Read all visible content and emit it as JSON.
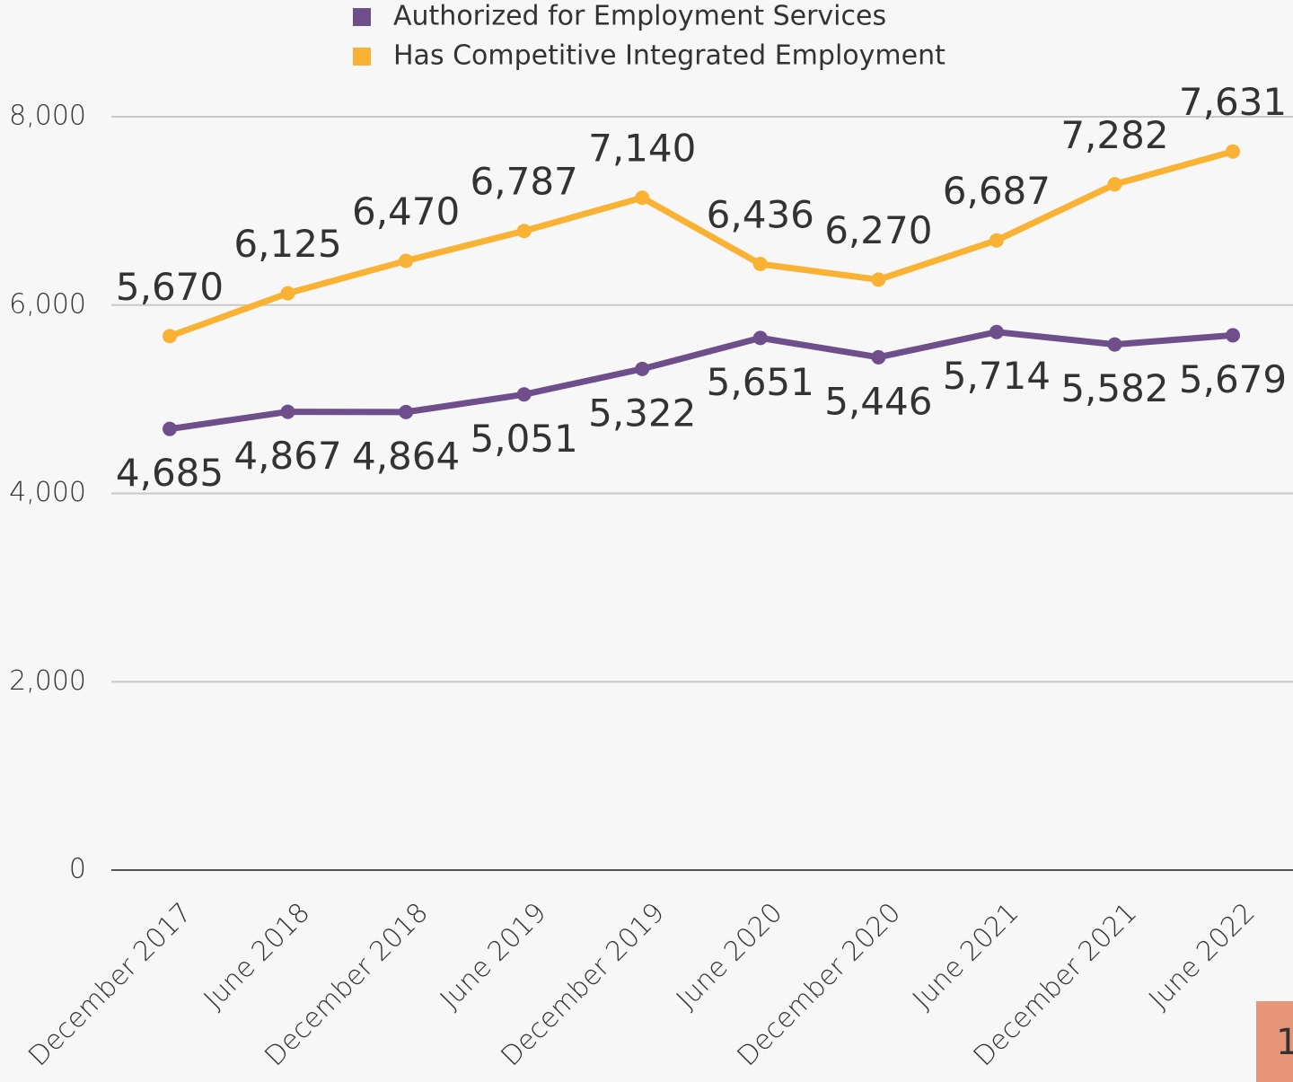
{
  "chart_data": {
    "type": "line",
    "categories": [
      "December 2017",
      "June 2018",
      "December 2018",
      "June 2019",
      "December 2019",
      "June 2020",
      "December 2020",
      "June 2021",
      "December 2021",
      "June 2022"
    ],
    "series": [
      {
        "name": "Authorized for Employment Services",
        "color": "#6f4e8c",
        "values": [
          4685,
          4867,
          4864,
          5051,
          5322,
          5651,
          5446,
          5714,
          5582,
          5679
        ],
        "value_labels": [
          "4,685",
          "4,867",
          "4,864",
          "5,051",
          "5,322",
          "5,651",
          "5,446",
          "5,714",
          "5,582",
          "5,679"
        ]
      },
      {
        "name": "Has Competitive Integrated Employment",
        "color": "#f9b233",
        "values": [
          5670,
          6125,
          6470,
          6787,
          7140,
          6436,
          6270,
          6687,
          7282,
          7631
        ],
        "value_labels": [
          "5,670",
          "6,125",
          "6,470",
          "6,787",
          "7,140",
          "6,436",
          "6,270",
          "6,687",
          "7,282",
          "7,631"
        ]
      }
    ],
    "ylim": [
      0,
      8000
    ],
    "yticks": [
      0,
      {
        "value": 2000,
        "label": "2,000"
      },
      {
        "value": 4000,
        "label": "4,000"
      },
      {
        "value": 6000,
        "label": "6,000"
      },
      {
        "value": 8000,
        "label": "8,000"
      }
    ],
    "grid": true
  },
  "page_number": "1"
}
